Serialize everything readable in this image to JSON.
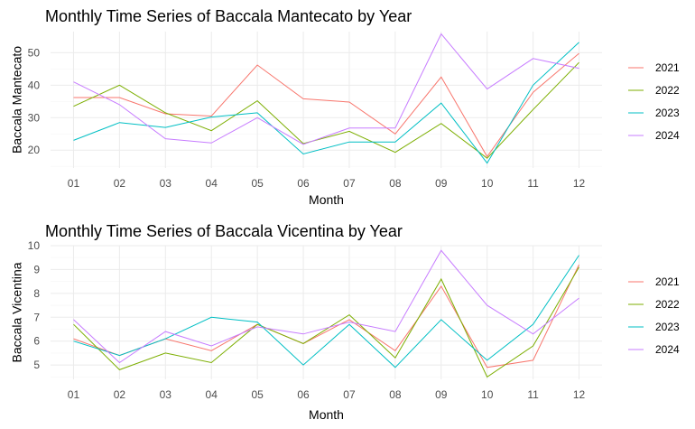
{
  "chart_data": [
    {
      "type": "line",
      "title": "Monthly Time Series of Baccala Mantecato by Year",
      "xlabel": "Month",
      "ylabel": "Baccala Mantecato",
      "categories": [
        "01",
        "02",
        "03",
        "04",
        "05",
        "06",
        "07",
        "08",
        "09",
        "10",
        "11",
        "12"
      ],
      "ylim": [
        14.5,
        56.5
      ],
      "yticks": [
        20,
        30,
        40,
        50
      ],
      "ytick_labels": [
        "20",
        "30",
        "40",
        "50"
      ],
      "grid": true,
      "legend_position": "right",
      "series": [
        {
          "name": "2021",
          "color": "#F8766D",
          "values": [
            36.2,
            36.2,
            31.2,
            30.5,
            46.2,
            35.8,
            34.8,
            25.0,
            42.5,
            18.0,
            37.8,
            49.8
          ]
        },
        {
          "name": "2022",
          "color": "#7CAE00",
          "values": [
            33.5,
            40.0,
            31.5,
            26.0,
            35.2,
            22.0,
            25.8,
            19.3,
            28.2,
            17.5,
            32.5,
            47.0
          ]
        },
        {
          "name": "2023",
          "color": "#00BFC4",
          "values": [
            23.0,
            28.5,
            27.0,
            30.2,
            31.5,
            18.8,
            22.5,
            22.5,
            34.5,
            16.0,
            40.0,
            53.2
          ]
        },
        {
          "name": "2024",
          "color": "#C77CFF",
          "values": [
            41.0,
            34.0,
            23.5,
            22.2,
            30.0,
            21.8,
            26.8,
            26.8,
            55.8,
            38.8,
            48.2,
            45.2
          ]
        }
      ]
    },
    {
      "type": "line",
      "title": "Monthly Time Series of Baccala Vicentina by Year",
      "xlabel": "Month",
      "ylabel": "Baccala Vicentina",
      "categories": [
        "01",
        "02",
        "03",
        "04",
        "05",
        "06",
        "07",
        "08",
        "09",
        "10",
        "11",
        "12"
      ],
      "ylim": [
        4.4,
        10.0
      ],
      "yticks": [
        5,
        6,
        7,
        8,
        9,
        10
      ],
      "ytick_labels": [
        "5",
        "6",
        "7",
        "8",
        "9",
        "10"
      ],
      "grid": true,
      "legend_position": "right",
      "series": [
        {
          "name": "2021",
          "color": "#F8766D",
          "values": [
            6.1,
            5.4,
            6.1,
            5.6,
            6.7,
            5.9,
            6.9,
            5.6,
            8.3,
            4.9,
            5.2,
            9.2
          ]
        },
        {
          "name": "2022",
          "color": "#7CAE00",
          "values": [
            6.7,
            4.8,
            5.5,
            5.1,
            6.7,
            5.9,
            7.1,
            5.3,
            8.6,
            4.5,
            5.8,
            9.1
          ]
        },
        {
          "name": "2023",
          "color": "#00BFC4",
          "values": [
            6.0,
            5.4,
            6.1,
            7.0,
            6.8,
            5.0,
            6.7,
            4.9,
            6.9,
            5.2,
            6.7,
            9.6
          ]
        },
        {
          "name": "2024",
          "color": "#C77CFF",
          "values": [
            6.9,
            5.1,
            6.4,
            5.8,
            6.6,
            6.3,
            6.8,
            6.4,
            9.8,
            7.5,
            6.3,
            7.8
          ]
        }
      ]
    }
  ]
}
